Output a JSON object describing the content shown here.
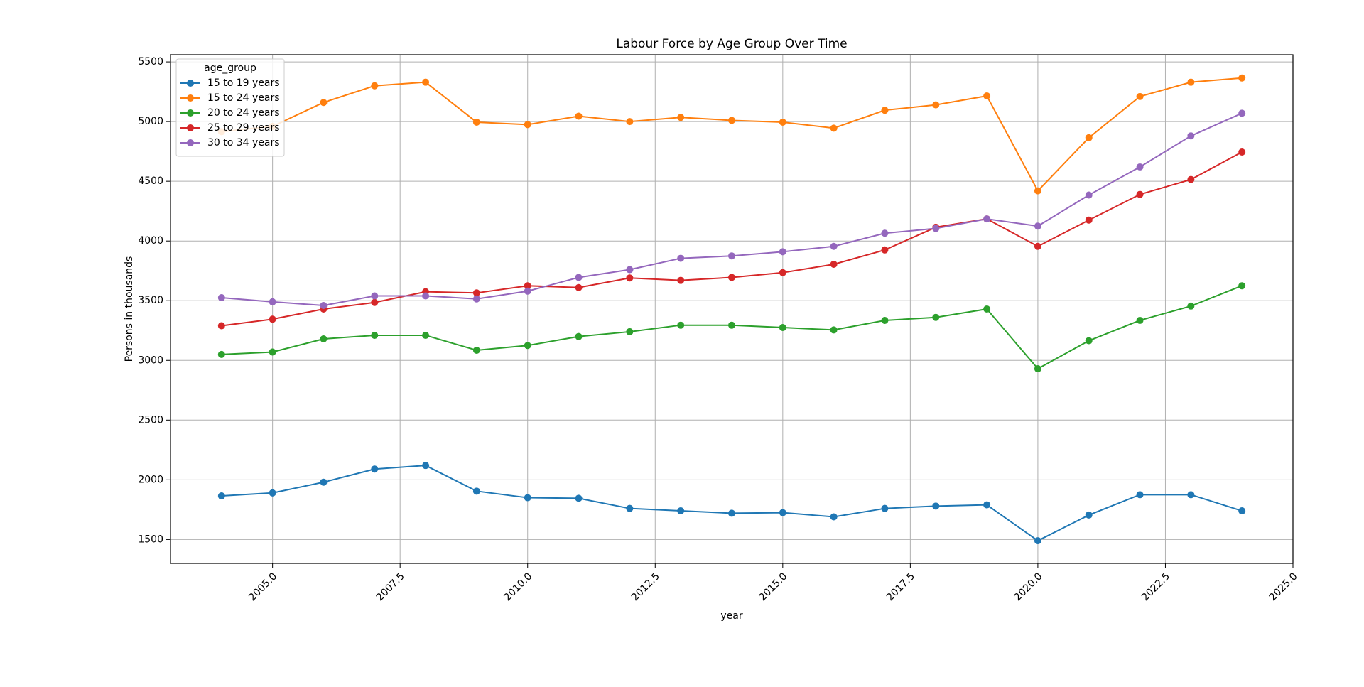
{
  "chart_data": {
    "type": "line",
    "title": "Labour Force by Age Group Over Time",
    "xlabel": "year",
    "ylabel": "Persons in thousands",
    "xlim": [
      2003,
      2025
    ],
    "ylim": [
      1300,
      5560
    ],
    "grid": true,
    "x_ticks": [
      2005.0,
      2007.5,
      2010.0,
      2012.5,
      2015.0,
      2017.5,
      2020.0,
      2022.5,
      2025.0
    ],
    "x_tick_labels": [
      "2005.0",
      "2007.5",
      "2010.0",
      "2012.5",
      "2015.0",
      "2017.5",
      "2020.0",
      "2022.5",
      "2025.0"
    ],
    "y_ticks": [
      1500,
      2000,
      2500,
      3000,
      3500,
      4000,
      4500,
      5000,
      5500
    ],
    "y_tick_labels": [
      "1500",
      "2000",
      "2500",
      "3000",
      "3500",
      "4000",
      "4500",
      "5000",
      "5500"
    ],
    "legend_title": "age_group",
    "legend_position": "top-left",
    "x": [
      2004,
      2005,
      2006,
      2007,
      2008,
      2009,
      2010,
      2011,
      2012,
      2013,
      2014,
      2015,
      2016,
      2017,
      2018,
      2019,
      2020,
      2021,
      2022,
      2023,
      2024
    ],
    "series": [
      {
        "name": "15 to 19 years",
        "color": "#1f77b4",
        "values": [
          1865,
          1890,
          1980,
          2090,
          2120,
          1905,
          1850,
          1845,
          1760,
          1740,
          1720,
          1725,
          1690,
          1760,
          1780,
          1790,
          1490,
          1705,
          1875,
          1875,
          1740
        ]
      },
      {
        "name": "15 to 24 years",
        "color": "#ff7f0e",
        "values": [
          4915,
          4960,
          5160,
          5300,
          5330,
          4995,
          4975,
          5045,
          5000,
          5035,
          5010,
          4995,
          4945,
          5095,
          5140,
          5215,
          4420,
          4865,
          5210,
          5330,
          5365
        ]
      },
      {
        "name": "20 to 24 years",
        "color": "#2ca02c",
        "values": [
          3050,
          3070,
          3180,
          3210,
          3210,
          3085,
          3125,
          3200,
          3240,
          3295,
          3295,
          3275,
          3255,
          3335,
          3360,
          3430,
          2930,
          3165,
          3335,
          3455,
          3625
        ]
      },
      {
        "name": "25 to 29 years",
        "color": "#d62728",
        "values": [
          3290,
          3345,
          3430,
          3485,
          3575,
          3565,
          3625,
          3610,
          3690,
          3670,
          3695,
          3735,
          3805,
          3925,
          4115,
          4185,
          3955,
          4175,
          4390,
          4515,
          4745
        ]
      },
      {
        "name": "30 to 34 years",
        "color": "#9467bd",
        "values": [
          3525,
          3490,
          3460,
          3540,
          3540,
          3515,
          3580,
          3695,
          3760,
          3855,
          3875,
          3910,
          3955,
          4065,
          4105,
          4185,
          4125,
          4385,
          4620,
          4880,
          5070
        ]
      }
    ]
  }
}
